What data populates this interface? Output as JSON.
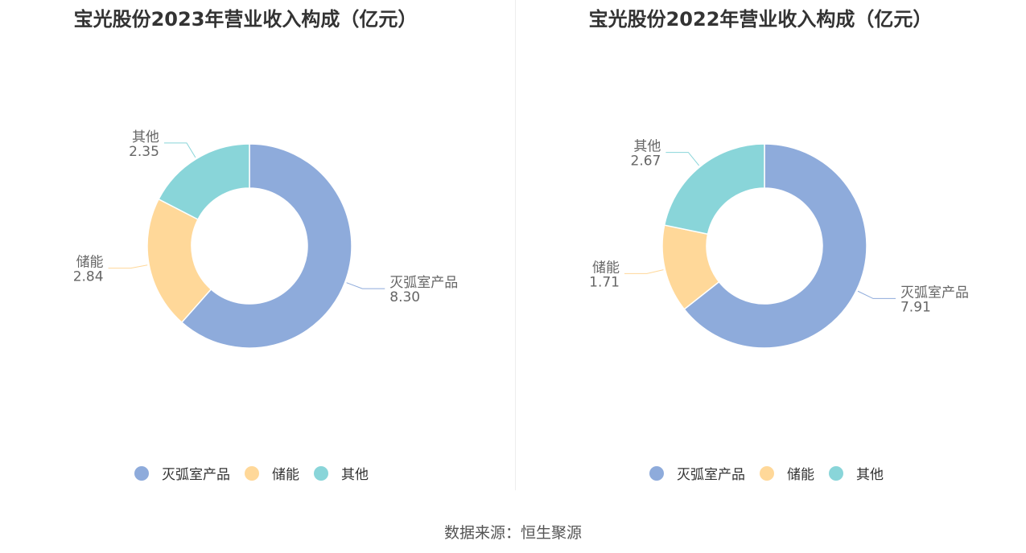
{
  "colors": {
    "灭弧室产品": "#8eabdb",
    "储能": "#ffd899",
    "其他": "#89d5d9"
  },
  "source": "数据来源：恒生聚源",
  "chart_data": [
    {
      "type": "pie",
      "style": "donut",
      "title": "宝光股份2023年营业收入构成（亿元）",
      "categories": [
        "灭弧室产品",
        "储能",
        "其他"
      ],
      "values": [
        8.3,
        2.84,
        2.35
      ],
      "value_labels": [
        "8.30",
        "2.84",
        "2.35"
      ],
      "legend_position": "bottom"
    },
    {
      "type": "pie",
      "style": "donut",
      "title": "宝光股份2022年营业收入构成（亿元）",
      "categories": [
        "灭弧室产品",
        "储能",
        "其他"
      ],
      "values": [
        7.91,
        1.71,
        2.67
      ],
      "value_labels": [
        "7.91",
        "1.71",
        "2.67"
      ],
      "legend_position": "bottom"
    }
  ]
}
